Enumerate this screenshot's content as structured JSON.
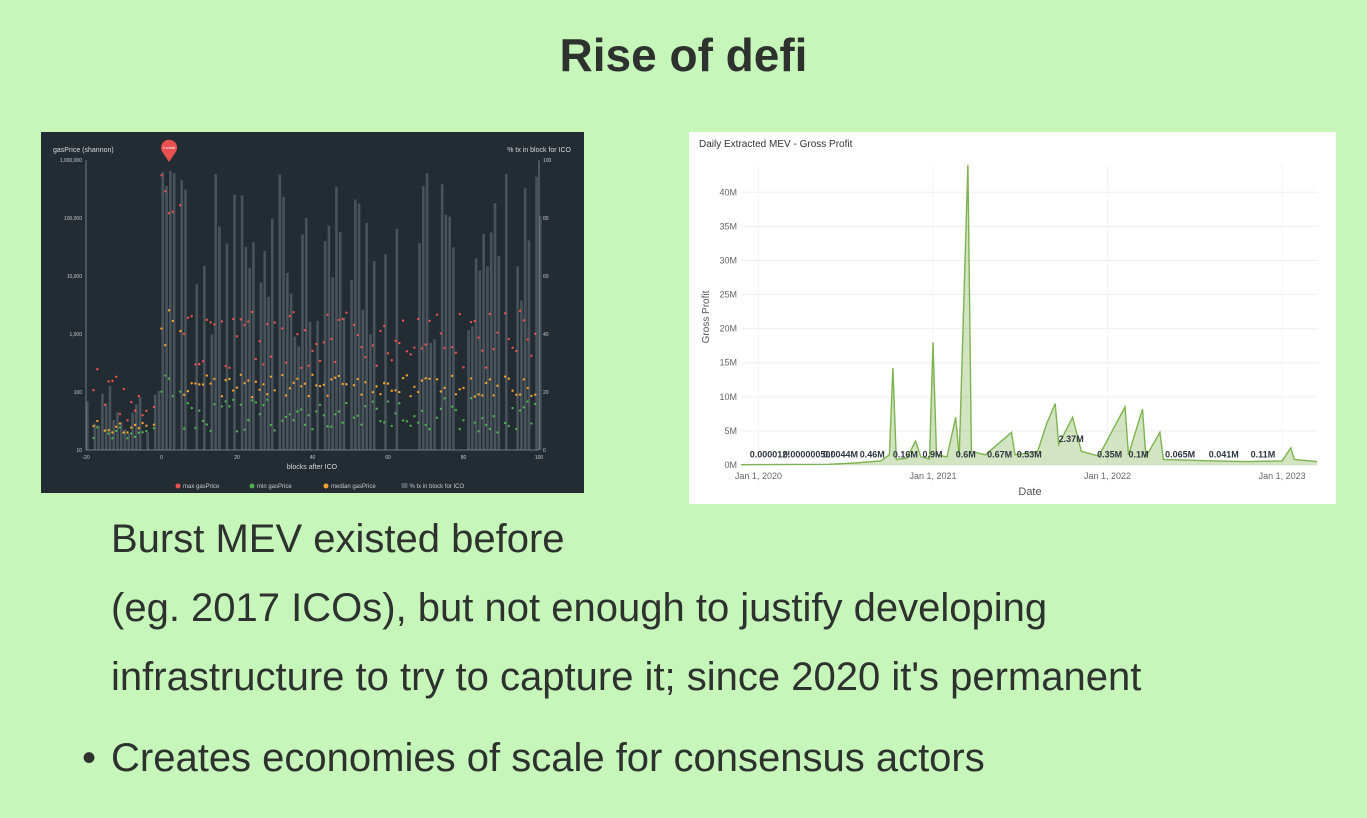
{
  "slide": {
    "title": "Rise of defi",
    "bullets": [
      "Burst MEV existed before",
      "(eg. 2017 ICOs), but not enough to justify developing",
      "infrastructure to try to capture it; since 2020 it's permanent",
      "Creates economies of scale for consensus actors"
    ],
    "bullet_marker": "•"
  },
  "colors": {
    "background": "#c7f6bb",
    "left_bg": "#242c33",
    "max": "#e8514f",
    "min": "#4caf50",
    "median": "#f0a030",
    "bars": "#55606a",
    "right_line": "#7db350"
  },
  "chart_data": [
    {
      "type": "scatter",
      "title": "",
      "ylabel": "gasPrice (shannon)",
      "y2label": "% tx in block for ICO",
      "xlabel": "blocks after ICO",
      "x_ticks": [
        "-20",
        "0",
        "20",
        "40",
        "60",
        "80",
        "100"
      ],
      "y_ticks": [
        "10",
        "100",
        "1,000",
        "10,000",
        "100,000",
        "1,000,000"
      ],
      "y2_ticks": [
        "0",
        "20",
        "40",
        "60",
        "80",
        "100"
      ],
      "y_scale": "log",
      "xlim": [
        -20,
        100
      ],
      "ylim_log10": [
        1,
        6
      ],
      "annotation": "Invalid",
      "annotation_x": 2,
      "legend": [
        "max gasPrice",
        "min gasPrice",
        "median gasPrice",
        "% tx in block for ICO"
      ],
      "legend_position": "bottom",
      "grid": false
    },
    {
      "type": "area",
      "title": "Daily Extracted MEV - Gross Profit",
      "xlabel": "Date",
      "ylabel": "Gross Profit",
      "x_ticks": [
        "Jan 1, 2020",
        "Jan 1, 2021",
        "Jan 1, 2022",
        "Jan 1, 2023"
      ],
      "y_ticks": [
        "0M",
        "5M",
        "10M",
        "15M",
        "20M",
        "25M",
        "30M",
        "35M",
        "40M"
      ],
      "ylim": [
        0,
        44
      ],
      "xlim": [
        2019.9,
        2023.2
      ],
      "grid": true,
      "labels": [
        {
          "x": 2019.95,
          "text": "0.000012!"
        },
        {
          "x": 2020.14,
          "text": "0.00000050!"
        },
        {
          "x": 2020.37,
          "text": "0.0044M"
        },
        {
          "x": 2020.58,
          "text": "0.46M"
        },
        {
          "x": 2020.77,
          "text": "0.16M"
        },
        {
          "x": 2020.94,
          "text": "0.9M"
        },
        {
          "x": 2021.13,
          "text": "0.6M"
        },
        {
          "x": 2021.31,
          "text": "0.67M"
        },
        {
          "x": 2021.48,
          "text": "0.53M"
        },
        {
          "x": 2021.72,
          "text": "2.37M"
        },
        {
          "x": 2021.94,
          "text": "0.35M"
        },
        {
          "x": 2022.12,
          "text": "0.1M"
        },
        {
          "x": 2022.33,
          "text": "0.065M"
        },
        {
          "x": 2022.58,
          "text": "0.041M"
        },
        {
          "x": 2022.82,
          "text": "0.11M"
        }
      ],
      "label_y": 1.1,
      "series": [
        {
          "points": [
            [
              2019.9,
              0.05
            ],
            [
              2020.4,
              0.1
            ],
            [
              2020.55,
              0.3
            ],
            [
              2020.7,
              0.6
            ],
            [
              2020.75,
              1.5
            ],
            [
              2020.77,
              14.2
            ],
            [
              2020.79,
              0.8
            ],
            [
              2020.85,
              1.0
            ],
            [
              2020.9,
              3.5
            ],
            [
              2020.93,
              1.2
            ],
            [
              2020.98,
              0.9
            ],
            [
              2021.0,
              18.0
            ],
            [
              2021.02,
              1.5
            ],
            [
              2021.08,
              1.2
            ],
            [
              2021.13,
              7.0
            ],
            [
              2021.15,
              1.2
            ],
            [
              2021.2,
              44.0
            ],
            [
              2021.22,
              2.0
            ],
            [
              2021.3,
              1.5
            ],
            [
              2021.45,
              4.8
            ],
            [
              2021.47,
              1.5
            ],
            [
              2021.6,
              2.0
            ],
            [
              2021.65,
              6.0
            ],
            [
              2021.7,
              9.0
            ],
            [
              2021.72,
              3.0
            ],
            [
              2021.8,
              7.0
            ],
            [
              2021.85,
              2.0
            ],
            [
              2021.95,
              1.3
            ],
            [
              2022.1,
              8.5
            ],
            [
              2022.12,
              1.5
            ],
            [
              2022.2,
              8.2
            ],
            [
              2022.22,
              1.2
            ],
            [
              2022.3,
              4.8
            ],
            [
              2022.32,
              0.8
            ],
            [
              2022.6,
              0.6
            ],
            [
              2022.8,
              0.5
            ],
            [
              2023.0,
              0.6
            ],
            [
              2023.05,
              2.5
            ],
            [
              2023.07,
              0.8
            ],
            [
              2023.2,
              0.5
            ]
          ]
        }
      ]
    }
  ]
}
